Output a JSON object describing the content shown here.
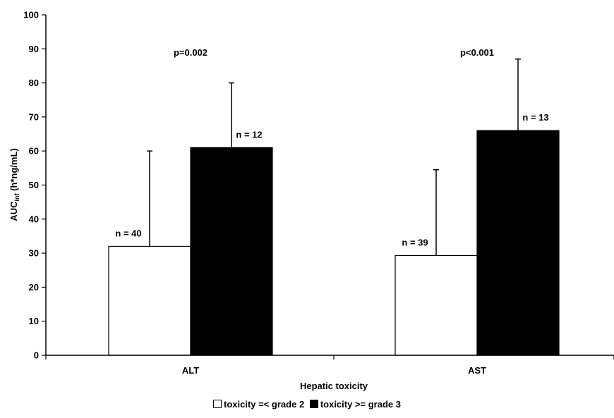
{
  "chart_data": {
    "type": "bar",
    "ylabel_main": "AUC",
    "ylabel_sub": "inf",
    "ylabel_rest": " (h*ng/mL)",
    "xlabel": "Hepatic toxicity",
    "ylim": [
      0,
      100
    ],
    "ytick_step": 10,
    "categories": [
      "ALT",
      "AST"
    ],
    "series": [
      {
        "name": "toxicity =< grade 2",
        "color": "#ffffff",
        "values": [
          32,
          29.3
        ],
        "error_upper": [
          60,
          54.5
        ],
        "n_labels": [
          "n = 40",
          "n = 39"
        ]
      },
      {
        "name": "toxicity >= grade 3",
        "color": "#000000",
        "values": [
          61,
          66
        ],
        "error_upper": [
          80,
          87
        ],
        "n_labels": [
          "n = 12",
          "n = 13"
        ]
      }
    ],
    "annotations": [
      {
        "category": "ALT",
        "text": "p=0.002",
        "y": 89
      },
      {
        "category": "AST",
        "text": "p<0.001",
        "y": 89
      }
    ],
    "legend_position": "bottom"
  }
}
